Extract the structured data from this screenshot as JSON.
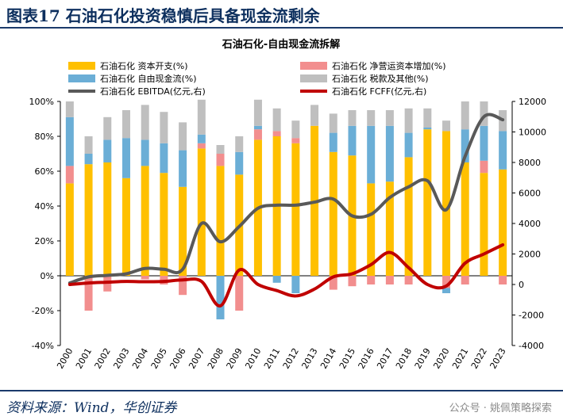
{
  "header": {
    "title": "图表17 石油石化投资稳慎后具备现金流剩余"
  },
  "footer": {
    "source": "资料来源：Wind，华创证券",
    "watermark": "公众号 · 姚佩策略探索"
  },
  "colors": {
    "capex": "#FFC000",
    "nwc": "#F28E8E",
    "fcf": "#6BAED6",
    "tax": "#BFBFBF",
    "ebitda": "#595959",
    "fcff": "#C00000",
    "axis": "#000000"
  },
  "chart_data": {
    "type": "bar",
    "title": "石油石化-自由现金流拆解",
    "categories": [
      "2000",
      "2001",
      "2002",
      "2003",
      "2004",
      "2005",
      "2006",
      "2007",
      "2008",
      "2009",
      "2010",
      "2011",
      "2012",
      "2013",
      "2014",
      "2015",
      "2016",
      "2017",
      "2018",
      "2019",
      "2020",
      "2021",
      "2022",
      "2023"
    ],
    "y_left": {
      "min": -40,
      "max": 100,
      "step": 20,
      "tick_labels": [
        "-40%",
        "-20%",
        "0%",
        "20%",
        "40%",
        "60%",
        "80%",
        "100%"
      ]
    },
    "y_right": {
      "min": -4000,
      "max": 12000,
      "step": 2000,
      "tick_labels": [
        "-4000",
        "-2000",
        "0",
        "2000",
        "4000",
        "6000",
        "8000",
        "10000",
        "12000"
      ]
    },
    "series": [
      {
        "name": "石油石化 资本开支(%)",
        "key": "capex",
        "kind": "bar",
        "values": [
          53,
          64,
          65,
          56,
          63,
          59,
          51,
          73,
          63,
          58,
          78,
          80,
          76,
          86,
          71,
          69,
          53,
          54,
          68,
          84,
          83,
          65,
          59,
          61
        ]
      },
      {
        "name": "石油石化 净营运资本增加(%)",
        "key": "nwc",
        "kind": "bar",
        "values": [
          10,
          -20,
          -9,
          0,
          -2,
          -5,
          -11,
          3,
          7,
          -20,
          6,
          3,
          3,
          0,
          -8,
          -6,
          -5,
          -5,
          -5,
          0,
          -7,
          -5,
          7,
          -5
        ]
      },
      {
        "name": "石油石化 自由现金流(%)",
        "key": "fcf",
        "kind": "bar",
        "values": [
          28,
          6,
          13,
          23,
          15,
          17,
          21,
          5,
          -25,
          13,
          2,
          -4,
          -10,
          0,
          11,
          17,
          33,
          32,
          14,
          1,
          -3,
          19,
          20,
          22
        ]
      },
      {
        "name": "石油石化 税款及其他(%)",
        "key": "tax",
        "kind": "bar",
        "values": [
          9,
          10,
          13,
          16,
          20,
          18,
          16,
          20,
          5,
          9,
          15,
          13,
          10,
          12,
          11,
          9,
          9,
          9,
          14,
          11,
          6,
          16,
          14,
          12
        ]
      },
      {
        "name": "石油石化 EBITDA(亿元,右)",
        "key": "ebitda",
        "kind": "line",
        "values": [
          100,
          500,
          600,
          700,
          1050,
          1000,
          1000,
          4000,
          2800,
          3800,
          5000,
          5200,
          5200,
          5400,
          5600,
          4500,
          4600,
          5700,
          6400,
          6800,
          4900,
          8400,
          11000,
          10800
        ]
      },
      {
        "name": "石油石化 FCFF(亿元,右)",
        "key": "fcff",
        "kind": "line",
        "values": [
          0,
          100,
          150,
          200,
          180,
          200,
          300,
          200,
          -1400,
          950,
          0,
          -400,
          -750,
          -300,
          500,
          700,
          1300,
          2100,
          1100,
          0,
          -100,
          1400,
          2000,
          2600
        ]
      }
    ]
  }
}
